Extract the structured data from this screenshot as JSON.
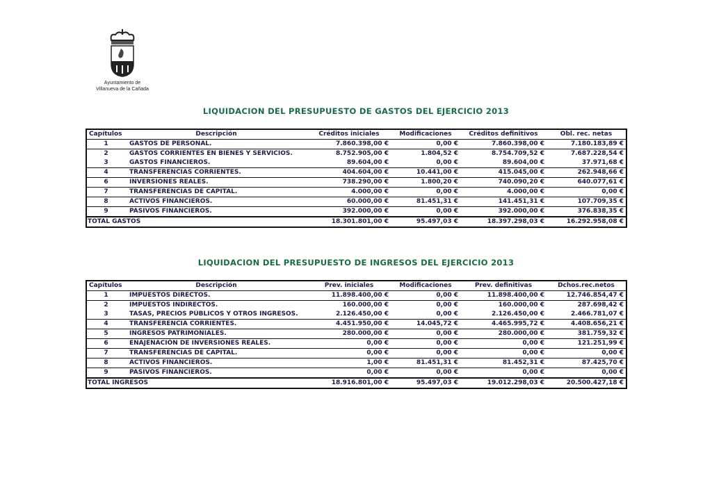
{
  "logo": {
    "line1": "Ayuntamiento de",
    "line2": "Villanueva de la Cañada"
  },
  "gastos": {
    "title": "LIQUIDACION DEL PRESUPUESTO DE GASTOS DEL EJERCICIO 2013",
    "headers": [
      "Capítulos",
      "Descripción",
      "Créditos iniciales",
      "Modificaciones",
      "Créditos definitivos",
      "Obl. rec. netas"
    ],
    "rows": [
      [
        "1",
        "GASTOS DE PERSONAL.",
        "7.860.398,00 €",
        "0,00 €",
        "7.860.398,00 €",
        "7.180.183,89 €"
      ],
      [
        "2",
        "GASTOS CORRIENTES EN BIENES Y SERVICIOS.",
        "8.752.905,00 €",
        "1.804,52 €",
        "8.754.709,52 €",
        "7.687.228,54 €"
      ],
      [
        "3",
        "GASTOS FINANCIEROS.",
        "89.604,00 €",
        "0,00 €",
        "89.604,00 €",
        "37.971,68 €"
      ],
      [
        "4",
        "TRANSFERENCIAS CORRIENTES.",
        "404.604,00 €",
        "10.441,00 €",
        "415.045,00 €",
        "262.948,66 €"
      ],
      [
        "6",
        "INVERSIONES REALES.",
        "738.290,00 €",
        "1.800,20 €",
        "740.090,20 €",
        "640.077,61 €"
      ],
      [
        "7",
        "TRANSFERENCIAS DE CAPITAL.",
        "4.000,00 €",
        "0,00 €",
        "4.000,00 €",
        "0,00 €"
      ],
      [
        "8",
        "ACTIVOS FINANCIEROS.",
        "60.000,00 €",
        "81.451,31 €",
        "141.451,31 €",
        "107.709,35 €"
      ],
      [
        "9",
        "PASIVOS FINANCIEROS.",
        "392.000,00 €",
        "0,00 €",
        "392.000,00 €",
        "376.838,35 €"
      ]
    ],
    "total": [
      "TOTAL GASTOS",
      "18.301.801,00 €",
      "95.497,03 €",
      "18.397.298,03 €",
      "16.292.958,08 €"
    ]
  },
  "ingresos": {
    "title": "LIQUIDACION DEL PRESUPUESTO DE INGRESOS DEL EJERCICIO 2013",
    "headers": [
      "Capítulos",
      "Descripción",
      "Prev. iniciales",
      "Modificaciones",
      "Prev. definitivas",
      "Dchos.rec.netos"
    ],
    "rows": [
      [
        "1",
        "IMPUESTOS DIRECTOS.",
        "11.898.400,00 €",
        "0,00 €",
        "11.898.400,00 €",
        "12.746.854,47 €"
      ],
      [
        "2",
        "IMPUESTOS INDIRECTOS.",
        "160.000,00 €",
        "0,00 €",
        "160.000,00 €",
        "287.698,42 €"
      ],
      [
        "3",
        "TASAS, PRECIOS PÚBLICOS Y OTROS INGRESOS.",
        "2.126.450,00 €",
        "0,00 €",
        "2.126.450,00 €",
        "2.466.781,07 €"
      ],
      [
        "4",
        "TRANSFERENCIA CORRIENTES.",
        "4.451.950,00 €",
        "14.045,72 €",
        "4.465.995,72 €",
        "4.408.656,21 €"
      ],
      [
        "5",
        "INGRESOS PATRIMONIALES.",
        "280.000,00 €",
        "0,00 €",
        "280.000,00 €",
        "381.759,32 €"
      ],
      [
        "6",
        "ENAJENACIÓN DE INVERSIONES REALES.",
        "0,00 €",
        "0,00 €",
        "0,00 €",
        "121.251,99 €"
      ],
      [
        "7",
        "TRANSFERENCIAS DE CAPITAL.",
        "0,00 €",
        "0,00 €",
        "0,00 €",
        "0,00 €"
      ],
      [
        "8",
        "ACTIVOS FINANCIEROS.",
        "1,00 €",
        "81.451,31 €",
        "81.452,31 €",
        "87.425,70 €"
      ],
      [
        "9",
        "PASIVOS FINANCIEROS.",
        "0,00 €",
        "0,00 €",
        "0,00 €",
        "0,00 €"
      ]
    ],
    "total": [
      "TOTAL INGRESOS",
      "18.916.801,00 €",
      "95.497,03 €",
      "19.012.298,03 €",
      "20.500.427,18 €"
    ]
  }
}
